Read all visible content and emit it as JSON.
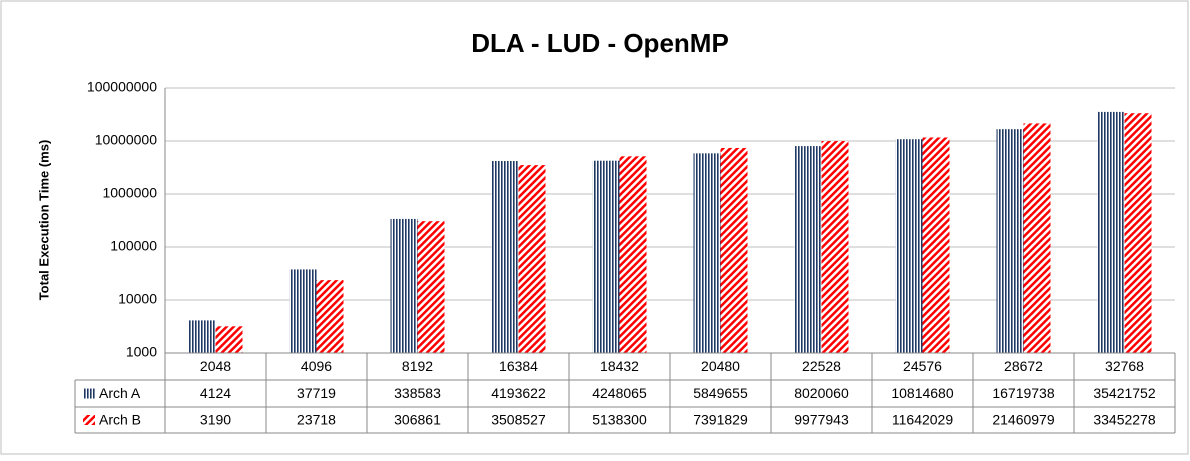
{
  "chart_data": {
    "type": "bar",
    "title": "DLA - LUD - OpenMP",
    "y_label": "Total Execution Time (ms)",
    "categories": [
      "2048",
      "4096",
      "8192",
      "16384",
      "18432",
      "20480",
      "22528",
      "24576",
      "28672",
      "32768"
    ],
    "series": [
      {
        "name": "Arch A",
        "color": "#1f3864",
        "values": [
          4124,
          37719,
          338583,
          4193622,
          4248065,
          5849655,
          8020060,
          10814680,
          16719738,
          35421752
        ]
      },
      {
        "name": "Arch B",
        "color": "#ff0000",
        "values": [
          3190,
          23718,
          306861,
          3508527,
          5138300,
          7391829,
          9977943,
          11642029,
          21460979,
          33452278
        ]
      }
    ],
    "ylim": [
      1000,
      100000000
    ],
    "yticks": [
      1000,
      10000,
      100000,
      1000000,
      10000000,
      100000000
    ],
    "log_scale": true,
    "grid": true
  }
}
